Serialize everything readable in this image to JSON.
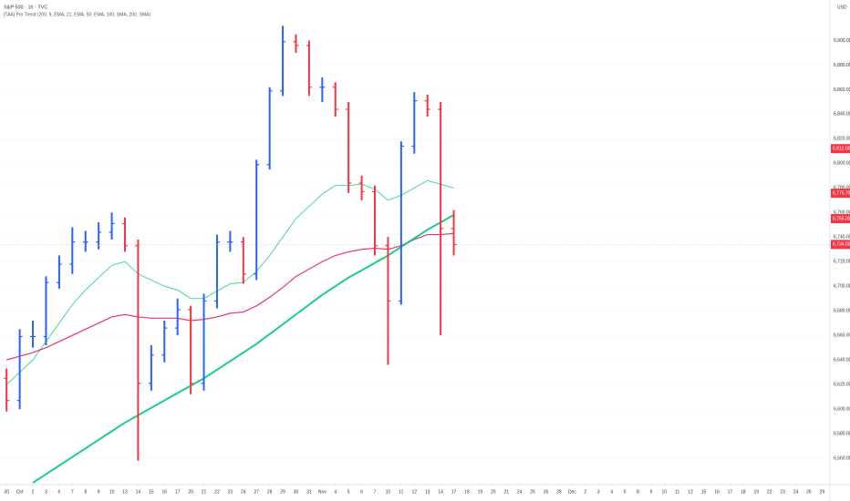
{
  "chart_data": {
    "type": "ohlc",
    "title": "S&P 500 · 1h · TVC",
    "subtitle": "[TAA] Pro Trend (200, 9, EMA, 21, EMA, 50, EMA, 100, SMA, 200, SMA)",
    "currency": "USD",
    "up_color": "#2962ff",
    "down_color": "#f23645",
    "x": [
      0,
      1,
      2,
      3,
      4,
      5,
      6,
      7,
      8,
      9,
      10,
      11,
      12,
      13,
      14,
      15,
      16,
      17,
      18,
      19,
      20,
      21,
      22,
      23,
      24,
      25,
      26,
      27,
      28,
      29,
      30,
      31,
      32,
      33,
      34
    ],
    "open": [
      6625,
      6607,
      6659,
      6659,
      6703,
      6718,
      6736,
      6736,
      6744,
      6751,
      6733,
      6621,
      6644,
      6666,
      6681,
      6621,
      6688,
      6736,
      6736,
      6710,
      6799,
      6859,
      6899,
      6896,
      6862,
      6862,
      6844,
      6784,
      6777,
      6733,
      6688,
      6814,
      6851,
      6844,
      6747
    ],
    "high": [
      6633,
      6665,
      6672,
      6708,
      6725,
      6748,
      6745,
      6752,
      6760,
      6756,
      6738,
      6652,
      6672,
      6690,
      6684,
      6694,
      6742,
      6745,
      6740,
      6803,
      6862,
      6912,
      6905,
      6900,
      6870,
      6866,
      6850,
      6790,
      6782,
      6740,
      6818,
      6858,
      6856,
      6850,
      6762
    ],
    "low": [
      6598,
      6600,
      6650,
      6652,
      6698,
      6710,
      6728,
      6730,
      6738,
      6728,
      6558,
      6615,
      6638,
      6660,
      6612,
      6615,
      6682,
      6728,
      6702,
      6705,
      6795,
      6855,
      6890,
      6855,
      6850,
      6838,
      6776,
      6770,
      6725,
      6636,
      6685,
      6808,
      6838,
      6660,
      6725
    ],
    "close": [
      6607,
      6659,
      6659,
      6703,
      6718,
      6736,
      6736,
      6744,
      6751,
      6733,
      6621,
      6644,
      6666,
      6681,
      6621,
      6688,
      6736,
      6736,
      6710,
      6799,
      6859,
      6899,
      6896,
      6862,
      6862,
      6844,
      6784,
      6777,
      6733,
      6688,
      6814,
      6851,
      6844,
      6747,
      6734
    ],
    "series": [
      {
        "color": "#3ccf8e",
        "width": 1,
        "values": [
          6620,
          6630,
          6640,
          6655,
          6670,
          6685,
          6697,
          6707,
          6717,
          6720,
          6710,
          6705,
          6700,
          6697,
          6690,
          6690,
          6696,
          6702,
          6703,
          6712,
          6725,
          6740,
          6755,
          6765,
          6775,
          6782,
          6782,
          6783,
          6779,
          6770,
          6774,
          6780,
          6786,
          6783,
          6780
        ]
      },
      {
        "color": "#e91e63",
        "width": 1.2,
        "values": [
          6640,
          6643,
          6646,
          6650,
          6655,
          6660,
          6665,
          6670,
          6675,
          6677,
          6675,
          6674,
          6674,
          6674,
          6672,
          6673,
          6675,
          6678,
          6679,
          6684,
          6691,
          6699,
          6708,
          6714,
          6720,
          6725,
          6728,
          6730,
          6731,
          6730,
          6733,
          6738,
          6742,
          6742,
          6743
        ]
      },
      {
        "color": "#00c97a",
        "width": 2,
        "values": [
          null,
          null,
          6540,
          6547,
          6554,
          6561,
          6568,
          6575,
          6582,
          6589,
          6595,
          6601,
          6607,
          6613,
          6619,
          6625,
          6632,
          6639,
          6646,
          6653,
          6661,
          6669,
          6677,
          6685,
          6693,
          6700,
          6707,
          6713,
          6719,
          6725,
          6732,
          6739,
          6746,
          6752,
          6758
        ]
      }
    ],
    "price_labels": [
      {
        "value": 6812,
        "label": "6,812.00",
        "color": "#f23645"
      },
      {
        "value": 6775.7,
        "label": "6,775.70",
        "color": "#f23645"
      },
      {
        "value": 6755,
        "label": "6,755.00",
        "color": "#f23645"
      },
      {
        "value": 6734,
        "label": "6,734.00",
        "color": "#f23645"
      }
    ],
    "xlim": [
      -0.5,
      62.6
    ],
    "ylim": [
      6540,
      6933
    ],
    "yticks": [
      {
        "value": 6560,
        "label": "6,560.00"
      },
      {
        "value": 6580,
        "label": "6,580.00"
      },
      {
        "value": 6600,
        "label": "6,600.00"
      },
      {
        "value": 6620,
        "label": "6,620.00"
      },
      {
        "value": 6640,
        "label": "6,640.00"
      },
      {
        "value": 6660,
        "label": "6,660.00"
      },
      {
        "value": 6680,
        "label": "6,680.00"
      },
      {
        "value": 6700,
        "label": "6,700.00"
      },
      {
        "value": 6720,
        "label": "6,720.00"
      },
      {
        "value": 6740,
        "label": "6,740.00"
      },
      {
        "value": 6760,
        "label": "6,760.00"
      },
      {
        "value": 6780,
        "label": "6,780.00"
      },
      {
        "value": 6800,
        "label": "6,800.00"
      },
      {
        "value": 6820,
        "label": "6,820.00"
      },
      {
        "value": 6840,
        "label": "6,840.00"
      },
      {
        "value": 6860,
        "label": "6,860.00"
      },
      {
        "value": 6880,
        "label": "6,880.00"
      },
      {
        "value": 6900,
        "label": "6,900.00"
      }
    ],
    "xticks": [
      {
        "value": 0,
        "label": "30"
      },
      {
        "value": 1,
        "label": "Oct"
      },
      {
        "value": 2,
        "label": "2"
      },
      {
        "value": 3,
        "label": "3"
      },
      {
        "value": 4,
        "label": "6"
      },
      {
        "value": 5,
        "label": "7"
      },
      {
        "value": 6,
        "label": "8"
      },
      {
        "value": 7,
        "label": "9"
      },
      {
        "value": 8,
        "label": "10"
      },
      {
        "value": 9,
        "label": "13"
      },
      {
        "value": 10,
        "label": "14"
      },
      {
        "value": 11,
        "label": "15"
      },
      {
        "value": 12,
        "label": "16"
      },
      {
        "value": 13,
        "label": "17"
      },
      {
        "value": 14,
        "label": "20"
      },
      {
        "value": 15,
        "label": "21"
      },
      {
        "value": 16,
        "label": "22"
      },
      {
        "value": 17,
        "label": "23"
      },
      {
        "value": 18,
        "label": "24"
      },
      {
        "value": 19,
        "label": "27"
      },
      {
        "value": 20,
        "label": "28"
      },
      {
        "value": 21,
        "label": "29"
      },
      {
        "value": 22,
        "label": "30"
      },
      {
        "value": 23,
        "label": "31"
      },
      {
        "value": 24,
        "label": "Nov"
      },
      {
        "value": 25,
        "label": "4"
      },
      {
        "value": 26,
        "label": "5"
      },
      {
        "value": 27,
        "label": "6"
      },
      {
        "value": 28,
        "label": "7"
      },
      {
        "value": 29,
        "label": "10"
      },
      {
        "value": 30,
        "label": "11"
      },
      {
        "value": 31,
        "label": "12"
      },
      {
        "value": 32,
        "label": "13"
      },
      {
        "value": 33,
        "label": "14"
      },
      {
        "value": 34,
        "label": "17"
      },
      {
        "value": 35,
        "label": "18"
      },
      {
        "value": 36,
        "label": "19"
      },
      {
        "value": 37,
        "label": "20"
      },
      {
        "value": 38,
        "label": "21"
      },
      {
        "value": 39,
        "label": "24"
      },
      {
        "value": 40,
        "label": "25"
      },
      {
        "value": 41,
        "label": "26"
      },
      {
        "value": 42,
        "label": "28"
      },
      {
        "value": 43,
        "label": "Dec"
      },
      {
        "value": 44,
        "label": "2"
      },
      {
        "value": 45,
        "label": "3"
      },
      {
        "value": 46,
        "label": "4"
      },
      {
        "value": 47,
        "label": "5"
      },
      {
        "value": 48,
        "label": "8"
      },
      {
        "value": 49,
        "label": "9"
      },
      {
        "value": 50,
        "label": "10"
      },
      {
        "value": 51,
        "label": "11"
      },
      {
        "value": 52,
        "label": "12"
      },
      {
        "value": 53,
        "label": "15"
      },
      {
        "value": 54,
        "label": "16"
      },
      {
        "value": 55,
        "label": "17"
      },
      {
        "value": 56,
        "label": "18"
      },
      {
        "value": 57,
        "label": "19"
      },
      {
        "value": 58,
        "label": "22"
      },
      {
        "value": 59,
        "label": "23"
      },
      {
        "value": 60,
        "label": "24"
      },
      {
        "value": 61,
        "label": "26"
      },
      {
        "value": 62,
        "label": "29"
      }
    ]
  }
}
